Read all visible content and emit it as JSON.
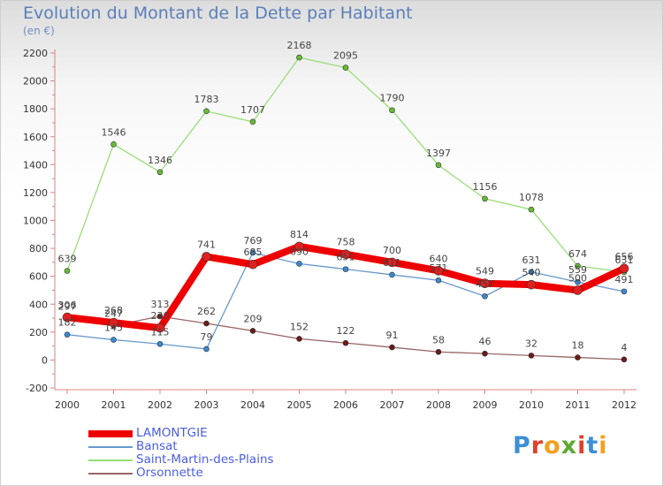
{
  "title": "Evolution du Montant de la Dette par Habitant",
  "unit": "(en €)",
  "logo": {
    "text": "Proxiti",
    "letter_colors": [
      "#3c8fd9",
      "#e0402a",
      "#f2a020",
      "#5caa33",
      "#e0402a",
      "#3c8fd9",
      "#f2a020"
    ]
  },
  "chart_data": {
    "type": "line",
    "x": [
      "2000",
      "2001",
      "2002",
      "2003",
      "2004",
      "2005",
      "2006",
      "2007",
      "2008",
      "2009",
      "2010",
      "2011",
      "2012"
    ],
    "ylim": [
      -200,
      2200
    ],
    "yticks": [
      -200,
      0,
      200,
      400,
      600,
      800,
      1000,
      1200,
      1400,
      1600,
      1800,
      2000,
      2200
    ],
    "grid": false,
    "legend_position": "bottom-left",
    "series": [
      {
        "name": "LAMONTGIE",
        "color": "#ee0000",
        "marker": "#e02020",
        "values": [
          306,
          268,
          230,
          741,
          685,
          814,
          758,
          700,
          640,
          549,
          540,
          500,
          656
        ],
        "labels": [
          "306",
          "268",
          "230",
          "741",
          "685",
          "814",
          "758",
          "700",
          "640",
          "549",
          "540",
          "500",
          "656"
        ]
      },
      {
        "name": "Bansat",
        "color": "#6699cc",
        "marker": "#3a88d0",
        "values": [
          182,
          145,
          115,
          79,
          769,
          690,
          651,
          611,
          571,
          457,
          631,
          559,
          491
        ],
        "labels": [
          "182",
          "145",
          "115",
          "79",
          "769",
          "690",
          "651",
          "611",
          "571",
          "457",
          "631",
          "559",
          "491"
        ]
      },
      {
        "name": "Saint-Martin-des-Plains",
        "color": "#99dd77",
        "marker": "#66bb33",
        "values": [
          639,
          1546,
          1346,
          1783,
          1707,
          2168,
          2095,
          1790,
          1397,
          1156,
          1078,
          674,
          631
        ],
        "labels": [
          "639",
          "1546",
          "1346",
          "1783",
          "1707",
          "2168",
          "2095",
          "1790",
          "1397",
          "1156",
          "1078",
          "674",
          "631"
        ]
      },
      {
        "name": "Orsonnette",
        "color": "#996666",
        "marker": "#6a1a1a",
        "values": [
          297,
          247,
          313,
          262,
          209,
          152,
          122,
          91,
          58,
          46,
          32,
          18,
          4
        ],
        "labels": [
          "297",
          "247",
          "313",
          "262",
          "209",
          "152",
          "122",
          "91",
          "58",
          "46",
          "32",
          "18",
          "4"
        ]
      }
    ]
  }
}
